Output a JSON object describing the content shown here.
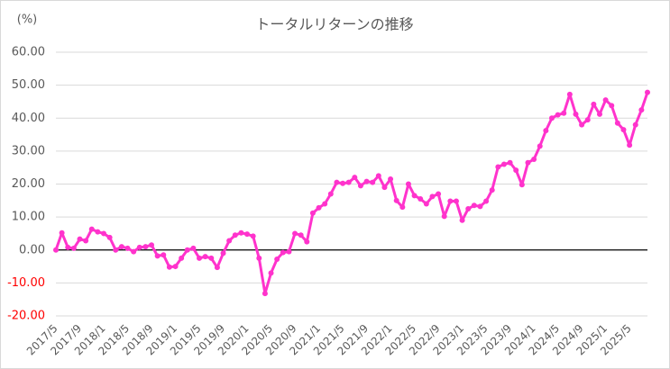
{
  "chart_data": {
    "type": "line",
    "title": "トータルリターンの推移",
    "y_unit": "(%)",
    "categories": [
      "2017/5",
      null,
      null,
      null,
      "2017/9",
      null,
      null,
      null,
      "2018/1",
      null,
      null,
      null,
      "2018/5",
      null,
      null,
      null,
      "2018/9",
      null,
      null,
      null,
      "2019/1",
      null,
      null,
      null,
      "2019/5",
      null,
      null,
      null,
      "2019/9",
      null,
      null,
      null,
      "2020/1",
      null,
      null,
      null,
      "2020/5",
      null,
      null,
      null,
      "2020/9",
      null,
      null,
      null,
      "2021/1",
      null,
      null,
      null,
      "2021/5",
      null,
      null,
      null,
      "2021/9",
      null,
      null,
      null,
      "2022/1",
      null,
      null,
      null,
      "2022/5",
      null,
      null,
      null,
      "2022/9",
      null,
      null,
      null,
      "2023/1",
      null,
      null,
      null,
      "2023/5",
      null,
      null,
      null,
      "2023/9",
      null,
      null,
      null,
      "2024/1",
      null,
      null,
      null,
      "2024/5",
      null,
      null,
      null,
      "2024/9",
      null,
      null,
      null,
      "2025/1",
      null,
      null,
      null,
      "2025/5",
      null,
      null,
      null
    ],
    "values": [
      0,
      5.2,
      0.8,
      0.5,
      3.3,
      2.8,
      6.3,
      5.5,
      5.0,
      3.8,
      0,
      1.0,
      0.5,
      -0.5,
      0.8,
      1.0,
      1.5,
      -1.8,
      -1.5,
      -5.2,
      -5.0,
      -2.5,
      0,
      0.5,
      -2.5,
      -2.0,
      -2.5,
      -5.3,
      -1.0,
      2.8,
      4.5,
      5.2,
      4.8,
      4.2,
      -2.5,
      -13.2,
      -7.0,
      -2.8,
      -0.8,
      -0.5,
      5.0,
      4.5,
      2.5,
      11.2,
      12.8,
      14.0,
      17.0,
      20.5,
      20.2,
      20.5,
      22.0,
      19.5,
      20.8,
      20.5,
      22.5,
      19.0,
      21.5,
      15.0,
      13.0,
      20.0,
      16.5,
      15.5,
      14.0,
      16.2,
      17.0,
      10.2,
      14.8,
      14.8,
      9.0,
      12.5,
      13.5,
      13.2,
      14.8,
      18.2,
      25.2,
      26.0,
      26.5,
      24.2,
      19.8,
      26.5,
      27.5,
      31.5,
      36.2,
      40.0,
      41.0,
      41.5,
      47.2,
      41.2,
      38.0,
      39.5,
      44.2,
      41.2,
      45.5,
      43.8,
      38.5,
      36.5,
      31.8,
      38.0,
      42.5,
      47.8
    ],
    "color": "#ff33cc",
    "negative_label_color": "#ff0000",
    "zero_line_color": "#000000",
    "ylim": [
      -20,
      60
    ],
    "yticks": [
      {
        "value": -20,
        "label": "-20.00"
      },
      {
        "value": -10,
        "label": "-10.00"
      },
      {
        "value": 0,
        "label": "0.00"
      },
      {
        "value": 10,
        "label": "10.00"
      },
      {
        "value": 20,
        "label": "20.00"
      },
      {
        "value": 30,
        "label": "30.00"
      },
      {
        "value": 40,
        "label": "40.00"
      },
      {
        "value": 50,
        "label": "50.00"
      },
      {
        "value": 60,
        "label": "60.00"
      }
    ],
    "grid": true
  }
}
